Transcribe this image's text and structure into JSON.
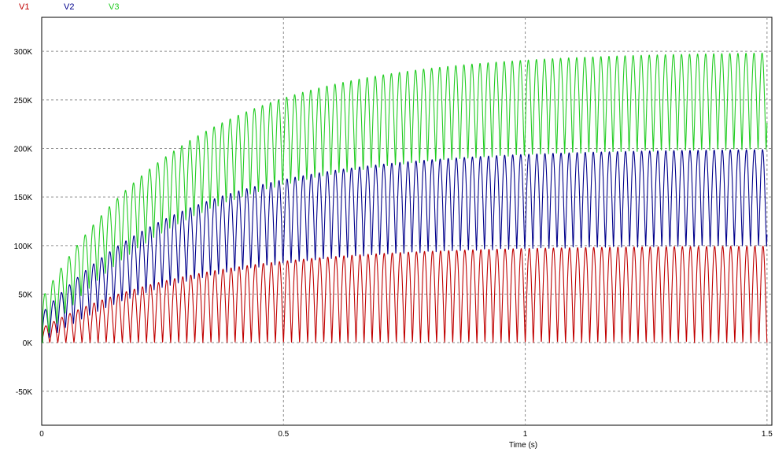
{
  "chart_data": {
    "type": "line",
    "xlabel": "Time (s)",
    "ylabel": "",
    "xlim": [
      0,
      1.51
    ],
    "ylim": [
      -85000,
      335000
    ],
    "x_ticks": [
      {
        "value": 0,
        "label": "0"
      },
      {
        "value": 0.5,
        "label": "0.5"
      },
      {
        "value": 1,
        "label": "1"
      },
      {
        "value": 1.5,
        "label": "1.5"
      }
    ],
    "y_ticks": [
      {
        "value": -50000,
        "label": "-50K"
      },
      {
        "value": 0,
        "label": "0K"
      },
      {
        "value": 50000,
        "label": "50K"
      },
      {
        "value": 100000,
        "label": "100K"
      },
      {
        "value": 150000,
        "label": "150K"
      },
      {
        "value": 200000,
        "label": "200K"
      },
      {
        "value": 250000,
        "label": "250K"
      },
      {
        "value": 300000,
        "label": "300K"
      }
    ],
    "grid": true,
    "legend_position": "top-left",
    "frequency_hz": 60,
    "time_constant_s": 0.3,
    "series": [
      {
        "name": "V1",
        "color": "#c00000",
        "baseline": 0,
        "peak": 100000,
        "offset_steady": 0,
        "peak_to_peak_steady": 100000
      },
      {
        "name": "V2",
        "color": "#00008b",
        "baseline": 0,
        "peak": 200000,
        "offset_steady": 100000,
        "peak_to_peak_steady": 100000
      },
      {
        "name": "V3",
        "color": "#22cc22",
        "baseline": 0,
        "peak": 300000,
        "offset_steady": 200000,
        "peak_to_peak_steady": 100000
      }
    ]
  }
}
